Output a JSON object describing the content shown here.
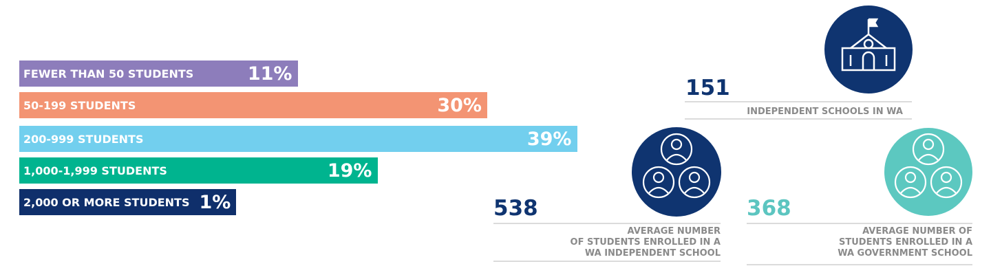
{
  "chart_data": {
    "type": "bar",
    "orientation": "horizontal",
    "categories": [
      "FEWER THAN 50 STUDENTS",
      "50-199 STUDENTS",
      "200-999 STUDENTS",
      "1,000-1,999 STUDENTS",
      "2,000 OR MORE STUDENTS"
    ],
    "values": [
      11,
      30,
      39,
      19,
      1
    ],
    "value_labels": [
      "11%",
      "30%",
      "39%",
      "19%",
      "1%"
    ],
    "colors": [
      "#8d7dbb",
      "#f39473",
      "#72cfee",
      "#00b48f",
      "#0f2f6b"
    ]
  },
  "stats": [
    {
      "value": 151,
      "color": "#0f3470",
      "lines": [
        "INDEPENDENT SCHOOLS IN WA"
      ]
    },
    {
      "value": 538,
      "color": "#0f3470",
      "lines": [
        "AVERAGE NUMBER",
        "OF STUDENTS ENROLLED IN A",
        "WA INDEPENDENT SCHOOL"
      ]
    },
    {
      "value": 368,
      "color": "#5cc5c0",
      "lines": [
        "AVERAGE NUMBER OF",
        "STUDENTS ENROLLED IN A",
        "WA GOVERNMENT SCHOOL"
      ]
    }
  ]
}
